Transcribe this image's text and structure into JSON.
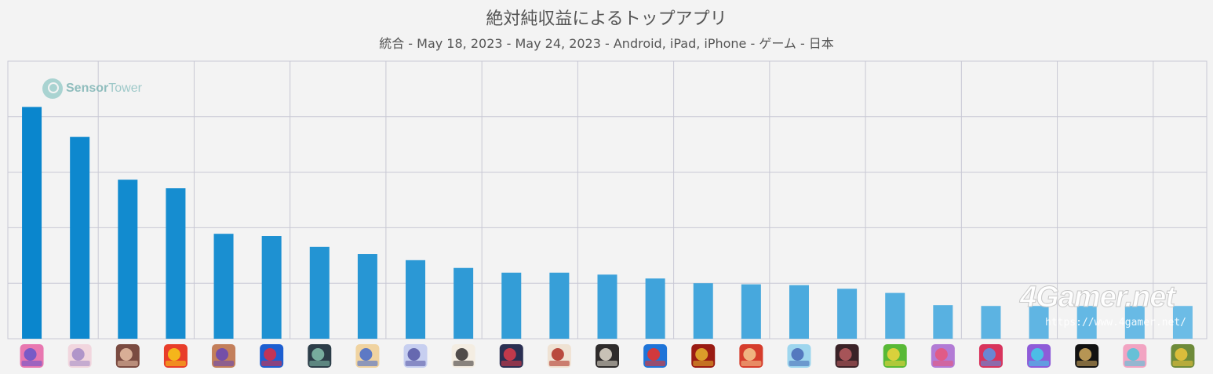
{
  "title": "絶対純収益によるトップアプリ",
  "subtitle": "統合 - May 18, 2023 - May 24, 2023 - Android, iPad, iPhone - ゲーム - 日本",
  "watermarks": {
    "sensortower_a": "Sensor",
    "sensortower_b": "Tower",
    "fourgamer": "4Gamer.net",
    "fourgamer_url": "https://www.4gamer.net/"
  },
  "colors": {
    "bar_start": "#0a86cd",
    "bar_end": "#6cbce6",
    "grid": "#c8c8d4",
    "background": "#f3f3f3"
  },
  "chart_data": {
    "type": "bar",
    "ylim": [
      0,
      100
    ],
    "grid": true,
    "values": [
      83.5,
      72.7,
      57.3,
      54.2,
      37.8,
      37.0,
      33.1,
      30.5,
      28.3,
      25.5,
      23.8,
      23.8,
      23.1,
      21.7,
      20.0,
      19.6,
      19.3,
      18.0,
      16.5,
      12.1,
      11.8,
      11.8,
      11.8,
      11.8,
      11.8
    ],
    "app_icons": [
      {
        "bg": "#e877b0",
        "fg": "#6d57c9"
      },
      {
        "bg": "#f1d6de",
        "fg": "#a88ec6"
      },
      {
        "bg": "#7a4b41",
        "fg": "#e2b9a0"
      },
      {
        "bg": "#e83d2a",
        "fg": "#f6c21a"
      },
      {
        "bg": "#c37f5b",
        "fg": "#6b4ab0"
      },
      {
        "bg": "#1d5fd1",
        "fg": "#d43049"
      },
      {
        "bg": "#2c3d48",
        "fg": "#7fb8a6"
      },
      {
        "bg": "#f0d3a0",
        "fg": "#4c6fc9"
      },
      {
        "bg": "#c7cff0",
        "fg": "#5b5da8"
      },
      {
        "bg": "#f4ede2",
        "fg": "#3f3a3a"
      },
      {
        "bg": "#2a2f52",
        "fg": "#d23b4a"
      },
      {
        "bg": "#efe2d3",
        "fg": "#b33a2d"
      },
      {
        "bg": "#2e2b2b",
        "fg": "#d9d2c5"
      },
      {
        "bg": "#1f74d8",
        "fg": "#e6332c"
      },
      {
        "bg": "#9a1b13",
        "fg": "#e2ab2e"
      },
      {
        "bg": "#d63d2c",
        "fg": "#f3c08a"
      },
      {
        "bg": "#9ed6ee",
        "fg": "#4b6fb9"
      },
      {
        "bg": "#3a2227",
        "fg": "#b25a5e"
      },
      {
        "bg": "#58b936",
        "fg": "#e8d43d"
      },
      {
        "bg": "#b27bd5",
        "fg": "#e4587e"
      },
      {
        "bg": "#d8345d",
        "fg": "#5e8fe0"
      },
      {
        "bg": "#8e5bd8",
        "fg": "#45c8e8"
      },
      {
        "bg": "#121212",
        "fg": "#c9a45c"
      },
      {
        "bg": "#f2a4c2",
        "fg": "#57c3d9"
      },
      {
        "bg": "#6e8b3a",
        "fg": "#e6c23c"
      }
    ]
  }
}
